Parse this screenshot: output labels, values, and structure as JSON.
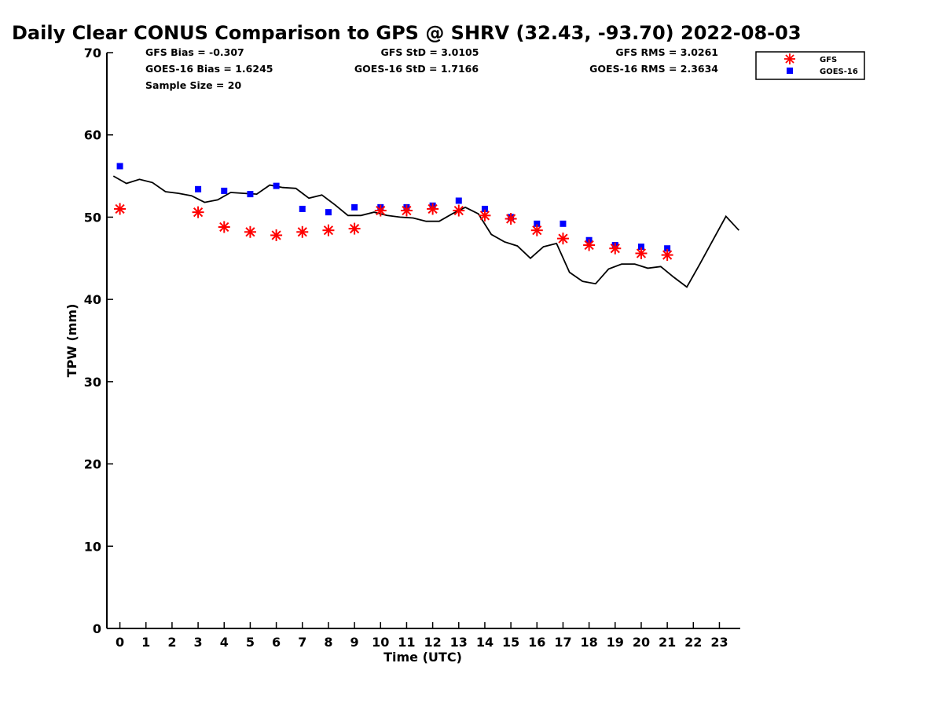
{
  "title": "Daily Clear CONUS Comparison to GPS @ SHRV (32.43, -93.70) 2022-08-03",
  "stats": {
    "gfs_bias": "GFS Bias = -0.307",
    "goes_bias": "GOES-16 Bias = 1.6245",
    "sample_size": "Sample Size = 20",
    "gfs_std": "GFS StD = 3.0105",
    "goes_std": "GOES-16 StD = 1.7166",
    "gfs_rms": "GFS RMS = 3.0261",
    "goes_rms": "GOES-16 RMS = 2.3634"
  },
  "chart_data": {
    "type": "scatter",
    "xlabel": "Time (UTC)",
    "ylabel": "TPW (mm)",
    "xlim": [
      -0.5,
      23.8
    ],
    "ylim": [
      0,
      70
    ],
    "xticks": [
      0,
      1,
      2,
      3,
      4,
      5,
      6,
      7,
      8,
      9,
      10,
      11,
      12,
      13,
      14,
      15,
      16,
      17,
      18,
      19,
      20,
      21,
      22,
      23
    ],
    "yticks": [
      0,
      10,
      20,
      30,
      40,
      50,
      60,
      70
    ],
    "grid": false,
    "legend_position": "top-right",
    "colors": {
      "gfs": "#ff0000",
      "goes": "#0000ff",
      "gps": "#000000"
    },
    "series": [
      {
        "name": "GFS",
        "marker": "asterisk",
        "x": [
          0,
          3,
          4,
          5,
          6,
          7,
          8,
          9,
          10,
          11,
          12,
          13,
          14,
          15,
          16,
          17,
          18,
          19,
          20,
          21
        ],
        "y": [
          51.0,
          50.6,
          48.8,
          48.2,
          47.8,
          48.2,
          48.4,
          48.6,
          50.8,
          50.8,
          51.0,
          50.8,
          50.2,
          49.8,
          48.4,
          47.4,
          46.6,
          46.2,
          45.6,
          45.4
        ]
      },
      {
        "name": "GOES-16",
        "marker": "square",
        "x": [
          0,
          3,
          4,
          5,
          6,
          7,
          8,
          9,
          10,
          11,
          12,
          13,
          14,
          15,
          16,
          17,
          18,
          19,
          20,
          21
        ],
        "y": [
          56.2,
          53.4,
          53.2,
          52.8,
          53.8,
          51.0,
          50.6,
          51.2,
          51.2,
          51.2,
          51.4,
          52.0,
          51.0,
          50.0,
          49.2,
          49.2,
          47.2,
          46.6,
          46.4,
          46.2
        ]
      },
      {
        "marker": "line",
        "x": [
          -0.25,
          0.25,
          0.75,
          1.25,
          1.75,
          2.25,
          2.75,
          3.25,
          3.75,
          4.25,
          4.75,
          5.25,
          5.75,
          6.25,
          6.75,
          7.25,
          7.75,
          8.25,
          8.75,
          9.25,
          9.75,
          10.25,
          10.75,
          11.25,
          11.75,
          12.25,
          12.75,
          13.25,
          13.75,
          14.25,
          14.75,
          15.25,
          15.75,
          16.25,
          16.75,
          17.25,
          17.75,
          18.25,
          18.75,
          19.25,
          19.75,
          20.25,
          20.75,
          21.25,
          21.75,
          22.25,
          22.75,
          23.25,
          23.75
        ],
        "y": [
          55.0,
          54.1,
          54.6,
          54.2,
          53.1,
          52.9,
          52.6,
          51.8,
          52.1,
          53.0,
          52.9,
          52.8,
          53.9,
          53.6,
          53.5,
          52.3,
          52.7,
          51.5,
          50.2,
          50.2,
          50.6,
          50.2,
          50.0,
          49.9,
          49.5,
          49.5,
          50.4,
          51.2,
          50.4,
          47.9,
          47.0,
          46.5,
          45.0,
          46.4,
          46.8,
          43.3,
          42.2,
          41.9,
          43.7,
          44.3,
          44.3,
          43.8,
          44.0,
          42.7,
          41.5,
          44.3,
          47.2,
          50.1,
          48.4
        ]
      }
    ]
  }
}
